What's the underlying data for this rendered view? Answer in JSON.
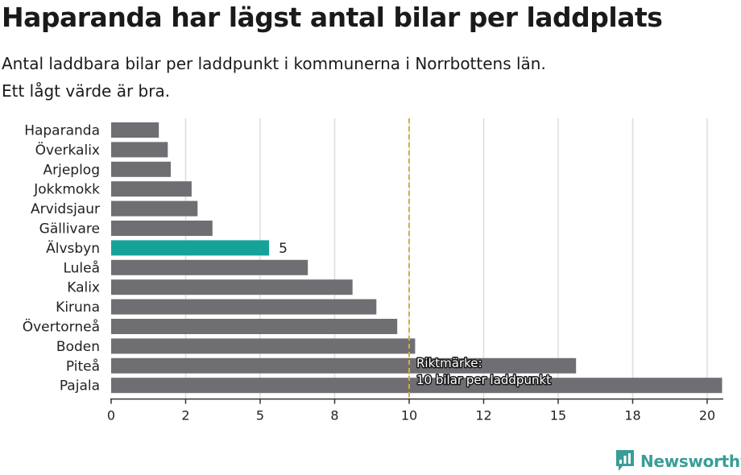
{
  "title": "Haparanda har lägst antal bilar per laddplats",
  "subtitle_line1": "Antal laddbara bilar per laddpunkt i kommunerna i Norrbottens län.",
  "subtitle_line2": "Ett lågt värde är bra.",
  "colors": {
    "bar": "#6f6e73",
    "highlight": "#15a399",
    "reference": "#d9a93f",
    "grid": "#dddddd",
    "brand": "#3a9d96"
  },
  "chart_data": {
    "type": "bar",
    "orientation": "horizontal",
    "categories": [
      "Haparanda",
      "Överkalix",
      "Arjeplog",
      "Jokkmokk",
      "Arvidsjaur",
      "Gällivare",
      "Älvsbyn",
      "Luleå",
      "Kalix",
      "Kiruna",
      "Övertorneå",
      "Boden",
      "Piteå",
      "Pajala"
    ],
    "values": [
      1.6,
      1.9,
      2.0,
      2.7,
      2.9,
      3.4,
      5.3,
      6.6,
      8.1,
      8.9,
      9.6,
      10.2,
      15.6,
      20.5
    ],
    "highlight": {
      "category": "Älvsbyn",
      "label": "5"
    },
    "x_ticks": [
      0,
      2.5,
      5,
      7.5,
      10,
      12.5,
      15,
      17.5,
      20
    ],
    "x_tick_labels": [
      "0",
      "2",
      "5",
      "8",
      "10",
      "12",
      "15",
      "18",
      "20"
    ],
    "xlim": [
      0,
      20.5
    ],
    "reference_line": {
      "value": 10,
      "label_line1": "Riktmärke:",
      "label_line2": "10 bilar per laddpunkt"
    },
    "xlabel": "",
    "ylabel": "",
    "grid": true
  },
  "logo": {
    "name": "newsworthy-logo-icon",
    "text": "Newsworthy"
  }
}
